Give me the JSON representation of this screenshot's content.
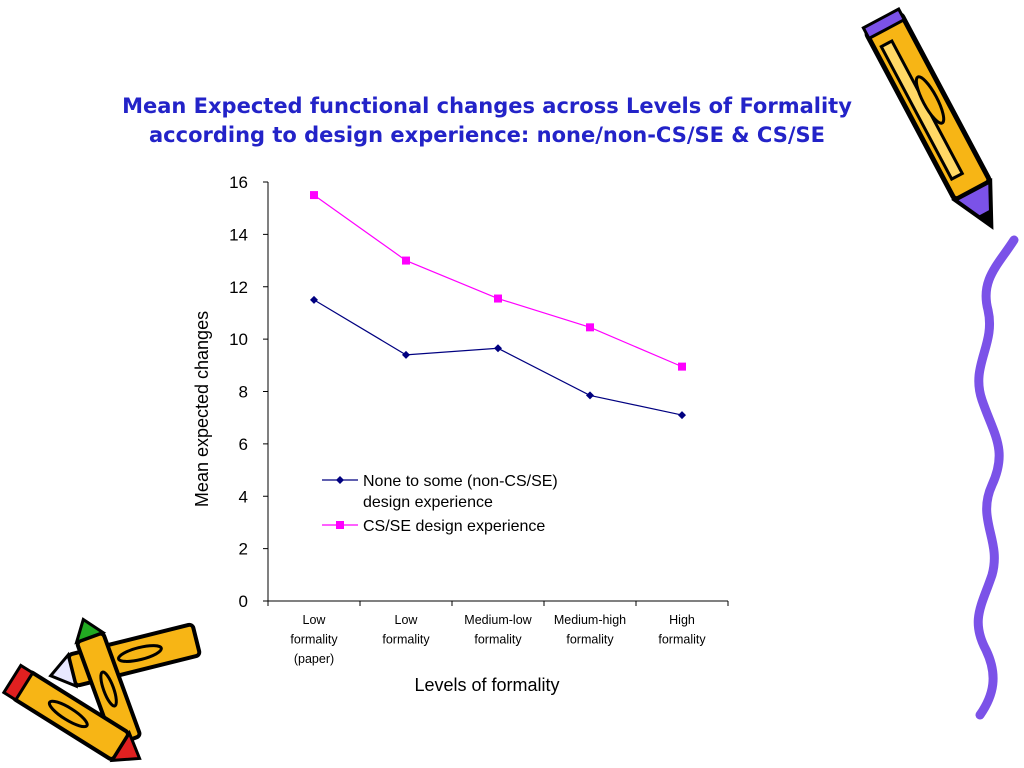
{
  "slide": {
    "title_line1": "Mean Expected functional changes across Levels of Formality",
    "title_line2": "according to design experience: none/non-CS/SE & CS/SE",
    "title_color": "#2323c8",
    "decorations": [
      "pencil-icon",
      "crayon-icon",
      "purple-squiggle-border"
    ]
  },
  "chart_data": {
    "type": "line",
    "title": "",
    "xlabel": "Levels of formality",
    "ylabel": "Mean expected changes",
    "ylim": [
      0,
      16
    ],
    "yticks": [
      0,
      2,
      4,
      6,
      8,
      10,
      12,
      14,
      16
    ],
    "grid": false,
    "legend_position": "center (inside plot)",
    "categories": [
      [
        "Low",
        "formality",
        "(paper)"
      ],
      [
        "Low",
        "formality"
      ],
      [
        "Medium-low",
        "formality"
      ],
      [
        "Medium-high",
        "formality"
      ],
      [
        "High",
        "formality"
      ]
    ],
    "series": [
      {
        "name_line1": "None to some (non-CS/SE)",
        "name_line2": "design experience",
        "marker": "diamond",
        "color": "#000080",
        "values": [
          11.5,
          9.4,
          9.65,
          7.85,
          7.1
        ]
      },
      {
        "name_line1": "CS/SE design experience",
        "name_line2": "",
        "marker": "square",
        "color": "#ff00ff",
        "values": [
          15.5,
          13.0,
          11.55,
          10.45,
          8.95
        ]
      }
    ]
  }
}
